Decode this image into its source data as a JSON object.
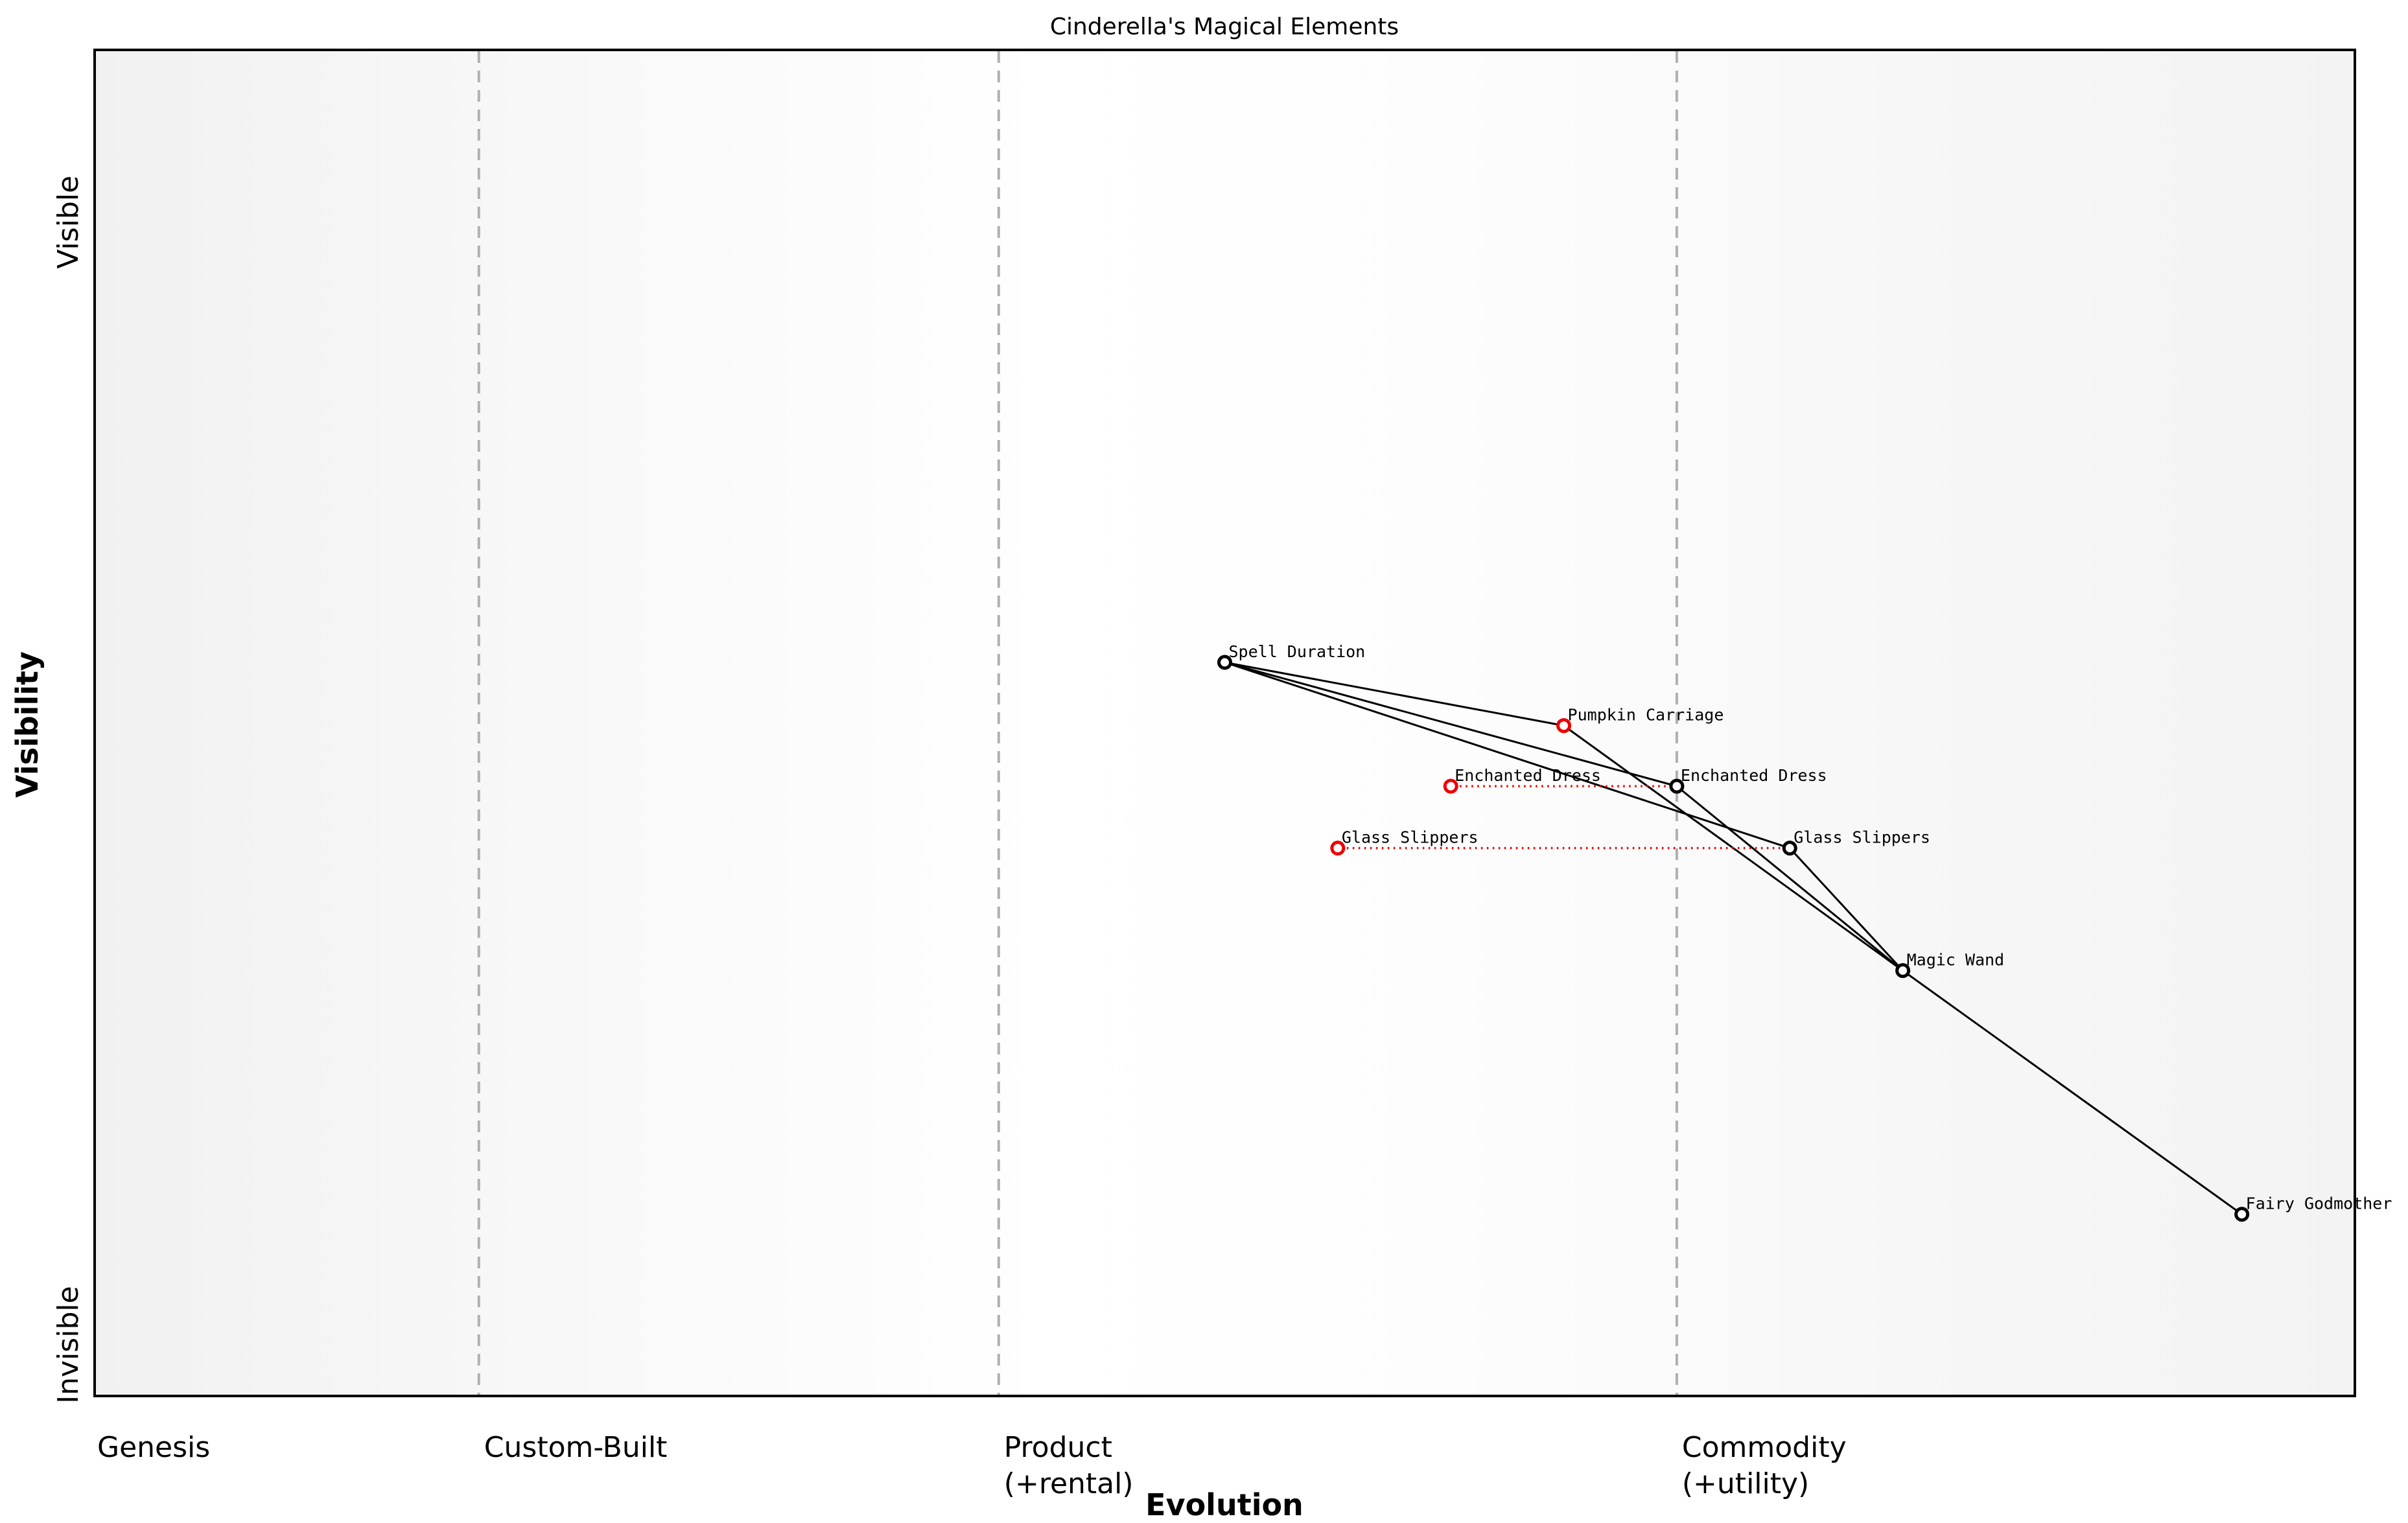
{
  "title": "Cinderella's Magical Elements",
  "colors": {
    "node_default": "#000000",
    "node_evolve": "#ee0000",
    "link": "#000000",
    "evolve_link": "#ee0000",
    "stage_boundary": "#b0b0b0",
    "plot_border": "#000000",
    "bg_edge": "#f1f1f1",
    "bg_middle": "#ffffff"
  },
  "chart_data": {
    "type": "scatter",
    "map_style": "wardley",
    "title": "Cinderella's Magical Elements",
    "xlabel": "Evolution",
    "ylabel": "Visibility",
    "xlim": [
      0,
      1
    ],
    "ylim": [
      0,
      1
    ],
    "grid": "dashed vertical stage boundaries",
    "legend": "none",
    "x_stages": [
      {
        "id": "genesis",
        "boundary": 0.0,
        "label_lines": [
          "Genesis"
        ]
      },
      {
        "id": "custom-built",
        "boundary": 0.17,
        "label_lines": [
          "Custom-Built"
        ]
      },
      {
        "id": "product",
        "boundary": 0.4,
        "label_lines": [
          "Product",
          "(+rental)"
        ]
      },
      {
        "id": "commodity",
        "boundary": 0.7,
        "label_lines": [
          "Commodity",
          "(+utility)"
        ]
      }
    ],
    "y_ticks": [
      {
        "label": "Visible",
        "visibility": 0.872
      },
      {
        "label": "Invisible",
        "visibility": 0.038
      }
    ],
    "nodes": [
      {
        "id": "spell-duration",
        "label": "Spell Duration",
        "evolution": 0.5,
        "visibility": 0.545,
        "color": "#000000"
      },
      {
        "id": "pumpkin-carriage",
        "label": "Pumpkin Carriage",
        "evolution": 0.65,
        "visibility": 0.498,
        "color": "#ee0000"
      },
      {
        "id": "enchanted-dress-red",
        "label": "Enchanted Dress",
        "evolution": 0.6,
        "visibility": 0.453,
        "color": "#ee0000"
      },
      {
        "id": "enchanted-dress-black",
        "label": "Enchanted Dress",
        "evolution": 0.7,
        "visibility": 0.453,
        "color": "#000000"
      },
      {
        "id": "glass-slippers-red",
        "label": "Glass Slippers",
        "evolution": 0.55,
        "visibility": 0.407,
        "color": "#ee0000"
      },
      {
        "id": "glass-slippers-black",
        "label": "Glass Slippers",
        "evolution": 0.75,
        "visibility": 0.407,
        "color": "#000000"
      },
      {
        "id": "magic-wand",
        "label": "Magic Wand",
        "evolution": 0.8,
        "visibility": 0.316,
        "color": "#000000"
      },
      {
        "id": "fairy-godmother",
        "label": "Fairy Godmother",
        "evolution": 0.95,
        "visibility": 0.135,
        "color": "#000000"
      }
    ],
    "links": [
      [
        "spell-duration",
        "pumpkin-carriage"
      ],
      [
        "spell-duration",
        "enchanted-dress-black"
      ],
      [
        "spell-duration",
        "glass-slippers-black"
      ],
      [
        "pumpkin-carriage",
        "magic-wand"
      ],
      [
        "enchanted-dress-black",
        "magic-wand"
      ],
      [
        "glass-slippers-black",
        "magic-wand"
      ],
      [
        "magic-wand",
        "fairy-godmother"
      ]
    ],
    "evolve_links": [
      [
        "enchanted-dress-red",
        "enchanted-dress-black"
      ],
      [
        "glass-slippers-red",
        "glass-slippers-black"
      ]
    ]
  }
}
